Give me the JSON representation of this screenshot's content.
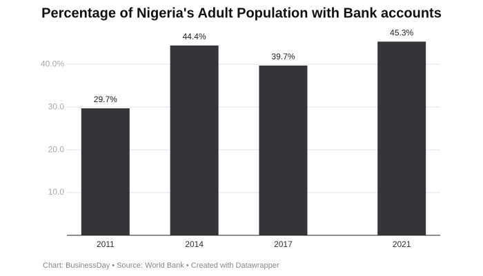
{
  "chart_data": {
    "type": "bar",
    "title": "Percentage of Nigeria's Adult Population with Bank accounts",
    "source": "Chart: BusinessDay • Source: World Bank • Created with Datawrapper",
    "x": [
      2011,
      2014,
      2017,
      2021
    ],
    "values": [
      29.7,
      44.4,
      39.7,
      45.3
    ],
    "value_labels": [
      "29.7%",
      "44.4%",
      "39.7%",
      "45.3%"
    ],
    "color": "#333538",
    "xlim": [
      2009.7,
      2022.3
    ],
    "xticks": [
      2011,
      2014,
      2017,
      2021
    ],
    "ylim": [
      0,
      46
    ],
    "yticks": [
      {
        "value": 10,
        "label": "10.0"
      },
      {
        "value": 20,
        "label": "20.0"
      },
      {
        "value": 30,
        "label": "30.0"
      },
      {
        "value": 40,
        "label": "40.0%"
      }
    ],
    "grid": true
  }
}
